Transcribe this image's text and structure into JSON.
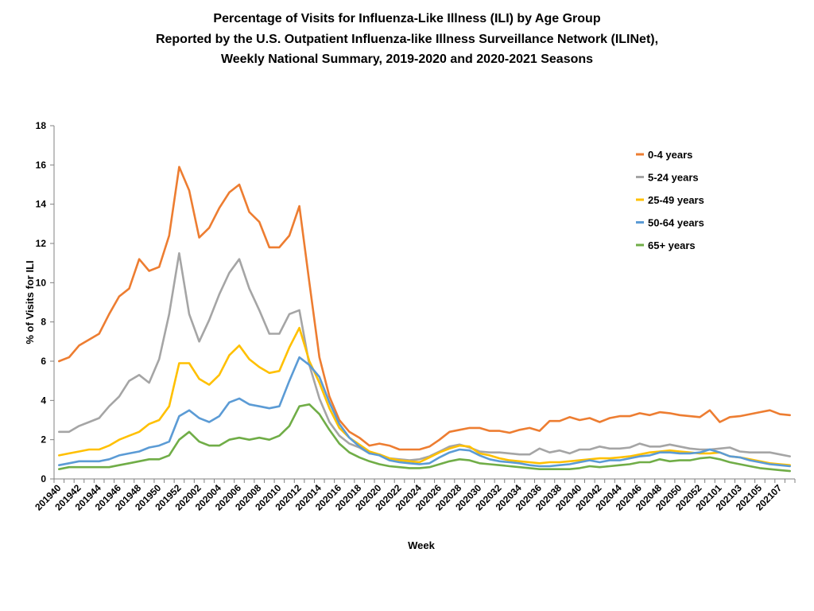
{
  "chart_data": {
    "type": "line",
    "title_lines": [
      "Percentage of Visits for Influenza-Like Illness (ILI) by Age Group",
      "Reported by the U.S. Outpatient Influenza-like Illness Surveillance Network (ILINet),",
      "Weekly National Summary, 2019-2020 and 2020-2021 Seasons"
    ],
    "xlabel": "Week",
    "ylabel": "% of Visits for ILI",
    "ylim": [
      0,
      18
    ],
    "yticks": [
      0,
      2,
      4,
      6,
      8,
      10,
      12,
      14,
      16,
      18
    ],
    "xtick_labels": [
      "201940",
      "201942",
      "201944",
      "201946",
      "201948",
      "201950",
      "201952",
      "202002",
      "202004",
      "202006",
      "202008",
      "202010",
      "202012",
      "202014",
      "202016",
      "202018",
      "202020",
      "202022",
      "202024",
      "202026",
      "202028",
      "202030",
      "202032",
      "202034",
      "202036",
      "202038",
      "202040",
      "202042",
      "202044",
      "202046",
      "202048",
      "202050",
      "202052",
      "202101",
      "202103",
      "202105",
      "202107"
    ],
    "grid": false,
    "legend_position": "top-right",
    "series": [
      {
        "name": "0-4 years",
        "color": "#ED7D31",
        "values": [
          6.0,
          6.2,
          6.8,
          7.1,
          7.4,
          8.4,
          9.3,
          9.7,
          11.2,
          10.6,
          10.8,
          12.4,
          15.9,
          14.7,
          12.3,
          12.8,
          13.8,
          14.6,
          15.0,
          13.6,
          13.1,
          11.8,
          11.8,
          12.4,
          13.9,
          10.0,
          6.2,
          4.2,
          3.0,
          2.4,
          2.1,
          1.7,
          1.8,
          1.7,
          1.5,
          1.5,
          1.5,
          1.65,
          2.0,
          2.4,
          2.5,
          2.6,
          2.6,
          2.45,
          2.45,
          2.35,
          2.5,
          2.6,
          2.45,
          2.95,
          2.95,
          3.15,
          3.0,
          3.1,
          2.9,
          3.1,
          3.2,
          3.2,
          3.35,
          3.25,
          3.4,
          3.35,
          3.25,
          3.2,
          3.15,
          3.5,
          2.9,
          3.15,
          3.2,
          3.3,
          3.4,
          3.5,
          3.3,
          3.25
        ]
      },
      {
        "name": "5-24 years",
        "color": "#A5A5A5",
        "values": [
          2.4,
          2.4,
          2.7,
          2.9,
          3.1,
          3.7,
          4.2,
          5.0,
          5.3,
          4.9,
          6.1,
          8.4,
          11.5,
          8.4,
          7.0,
          8.1,
          9.4,
          10.5,
          11.2,
          9.7,
          8.6,
          7.4,
          7.4,
          8.4,
          8.6,
          5.8,
          4.1,
          2.9,
          2.2,
          1.8,
          1.6,
          1.3,
          1.25,
          1.05,
          1.0,
          0.95,
          1.0,
          1.15,
          1.4,
          1.65,
          1.75,
          1.6,
          1.4,
          1.35,
          1.35,
          1.3,
          1.25,
          1.25,
          1.55,
          1.35,
          1.45,
          1.3,
          1.5,
          1.5,
          1.65,
          1.55,
          1.55,
          1.6,
          1.8,
          1.65,
          1.65,
          1.75,
          1.65,
          1.55,
          1.5,
          1.5,
          1.55,
          1.6,
          1.4,
          1.35,
          1.35,
          1.35,
          1.25,
          1.15
        ]
      },
      {
        "name": "25-49 years",
        "color": "#FFC000",
        "values": [
          1.2,
          1.3,
          1.4,
          1.5,
          1.5,
          1.7,
          2.0,
          2.2,
          2.4,
          2.8,
          3.0,
          3.7,
          5.9,
          5.9,
          5.1,
          4.8,
          5.3,
          6.3,
          6.8,
          6.1,
          5.7,
          5.4,
          5.5,
          6.7,
          7.7,
          6.0,
          4.9,
          3.6,
          2.6,
          2.1,
          1.75,
          1.4,
          1.25,
          1.05,
          0.95,
          0.9,
          0.85,
          1.1,
          1.35,
          1.55,
          1.7,
          1.65,
          1.3,
          1.2,
          1.05,
          0.95,
          0.9,
          0.85,
          0.8,
          0.85,
          0.85,
          0.9,
          0.95,
          1.0,
          1.05,
          1.05,
          1.1,
          1.15,
          1.25,
          1.35,
          1.4,
          1.45,
          1.4,
          1.35,
          1.3,
          1.3,
          1.35,
          1.15,
          1.1,
          1.0,
          0.9,
          0.8,
          0.75,
          0.7
        ]
      },
      {
        "name": "50-64 years",
        "color": "#5B9BD5",
        "values": [
          0.7,
          0.8,
          0.9,
          0.9,
          0.9,
          1.0,
          1.2,
          1.3,
          1.4,
          1.6,
          1.7,
          1.9,
          3.2,
          3.5,
          3.1,
          2.9,
          3.2,
          3.9,
          4.1,
          3.8,
          3.7,
          3.6,
          3.7,
          5.0,
          6.2,
          5.8,
          5.2,
          3.9,
          2.8,
          2.1,
          1.65,
          1.3,
          1.2,
          0.95,
          0.85,
          0.8,
          0.75,
          0.8,
          1.1,
          1.35,
          1.5,
          1.45,
          1.2,
          1.0,
          0.9,
          0.85,
          0.8,
          0.7,
          0.65,
          0.65,
          0.7,
          0.75,
          0.85,
          0.95,
          0.85,
          0.95,
          0.95,
          1.05,
          1.15,
          1.2,
          1.35,
          1.35,
          1.3,
          1.3,
          1.35,
          1.5,
          1.35,
          1.15,
          1.1,
          0.95,
          0.85,
          0.75,
          0.7,
          0.65
        ]
      },
      {
        "name": "65+ years",
        "color": "#70AD47",
        "values": [
          0.5,
          0.6,
          0.6,
          0.6,
          0.6,
          0.6,
          0.7,
          0.8,
          0.9,
          1.0,
          1.0,
          1.2,
          2.0,
          2.4,
          1.9,
          1.7,
          1.7,
          2.0,
          2.1,
          2.0,
          2.1,
          2.0,
          2.2,
          2.7,
          3.7,
          3.8,
          3.3,
          2.5,
          1.8,
          1.35,
          1.1,
          0.9,
          0.75,
          0.65,
          0.6,
          0.55,
          0.55,
          0.6,
          0.75,
          0.9,
          1.0,
          0.95,
          0.8,
          0.75,
          0.7,
          0.65,
          0.6,
          0.55,
          0.5,
          0.5,
          0.5,
          0.5,
          0.55,
          0.65,
          0.6,
          0.65,
          0.7,
          0.75,
          0.85,
          0.85,
          1.0,
          0.9,
          0.95,
          0.95,
          1.05,
          1.1,
          1.0,
          0.85,
          0.75,
          0.65,
          0.55,
          0.5,
          0.45,
          0.4
        ]
      }
    ]
  }
}
